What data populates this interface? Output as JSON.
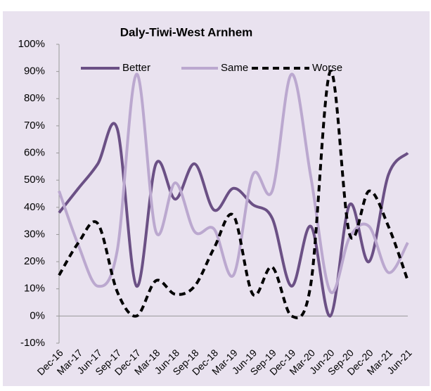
{
  "chart_data": {
    "type": "line",
    "title": "Daly-Tiwi-West Arnhem",
    "categories": [
      "Dec-16",
      "Mar-17",
      "Jun-17",
      "Sep-17",
      "Dec-17",
      "Mar-18",
      "Jun-18",
      "Sep-18",
      "Dec-18",
      "Mar-19",
      "Jun-19",
      "Sep-19",
      "Dec-19",
      "Mar-20",
      "Jun-20",
      "Sep-20",
      "Dec-20",
      "Mar-21",
      "Jun-21"
    ],
    "series": [
      {
        "name": "Better",
        "color": "#6b5085",
        "dashed": false,
        "values": [
          38,
          47,
          56,
          69,
          11,
          56,
          43,
          56,
          39,
          47,
          41,
          36,
          11,
          33,
          0,
          41,
          20,
          52,
          60
        ]
      },
      {
        "name": "Same",
        "color": "#bba8cf",
        "dashed": false,
        "values": [
          46,
          26,
          11,
          24,
          89,
          31,
          49,
          31,
          32,
          15,
          52,
          46,
          89,
          51,
          9,
          29,
          33,
          16,
          27
        ]
      },
      {
        "name": "Worse",
        "color": "#000000",
        "dashed": true,
        "values": [
          15,
          27,
          34,
          9,
          0,
          13,
          8,
          11,
          25,
          37,
          8,
          18,
          0,
          12,
          90,
          30,
          46,
          33,
          13
        ]
      }
    ],
    "ylim": [
      -10,
      100
    ],
    "yticks": [
      {
        "value": -10,
        "label": "-10%"
      },
      {
        "value": 0,
        "label": "0%"
      },
      {
        "value": 10,
        "label": "10%"
      },
      {
        "value": 20,
        "label": "20%"
      },
      {
        "value": 30,
        "label": "30%"
      },
      {
        "value": 40,
        "label": "40%"
      },
      {
        "value": 50,
        "label": "50%"
      },
      {
        "value": 60,
        "label": "60%"
      },
      {
        "value": 70,
        "label": "70%"
      },
      {
        "value": 80,
        "label": "80%"
      },
      {
        "value": 90,
        "label": "90%"
      },
      {
        "value": 100,
        "label": "100%"
      }
    ],
    "grid": false,
    "legend": "top",
    "smooth": true
  }
}
